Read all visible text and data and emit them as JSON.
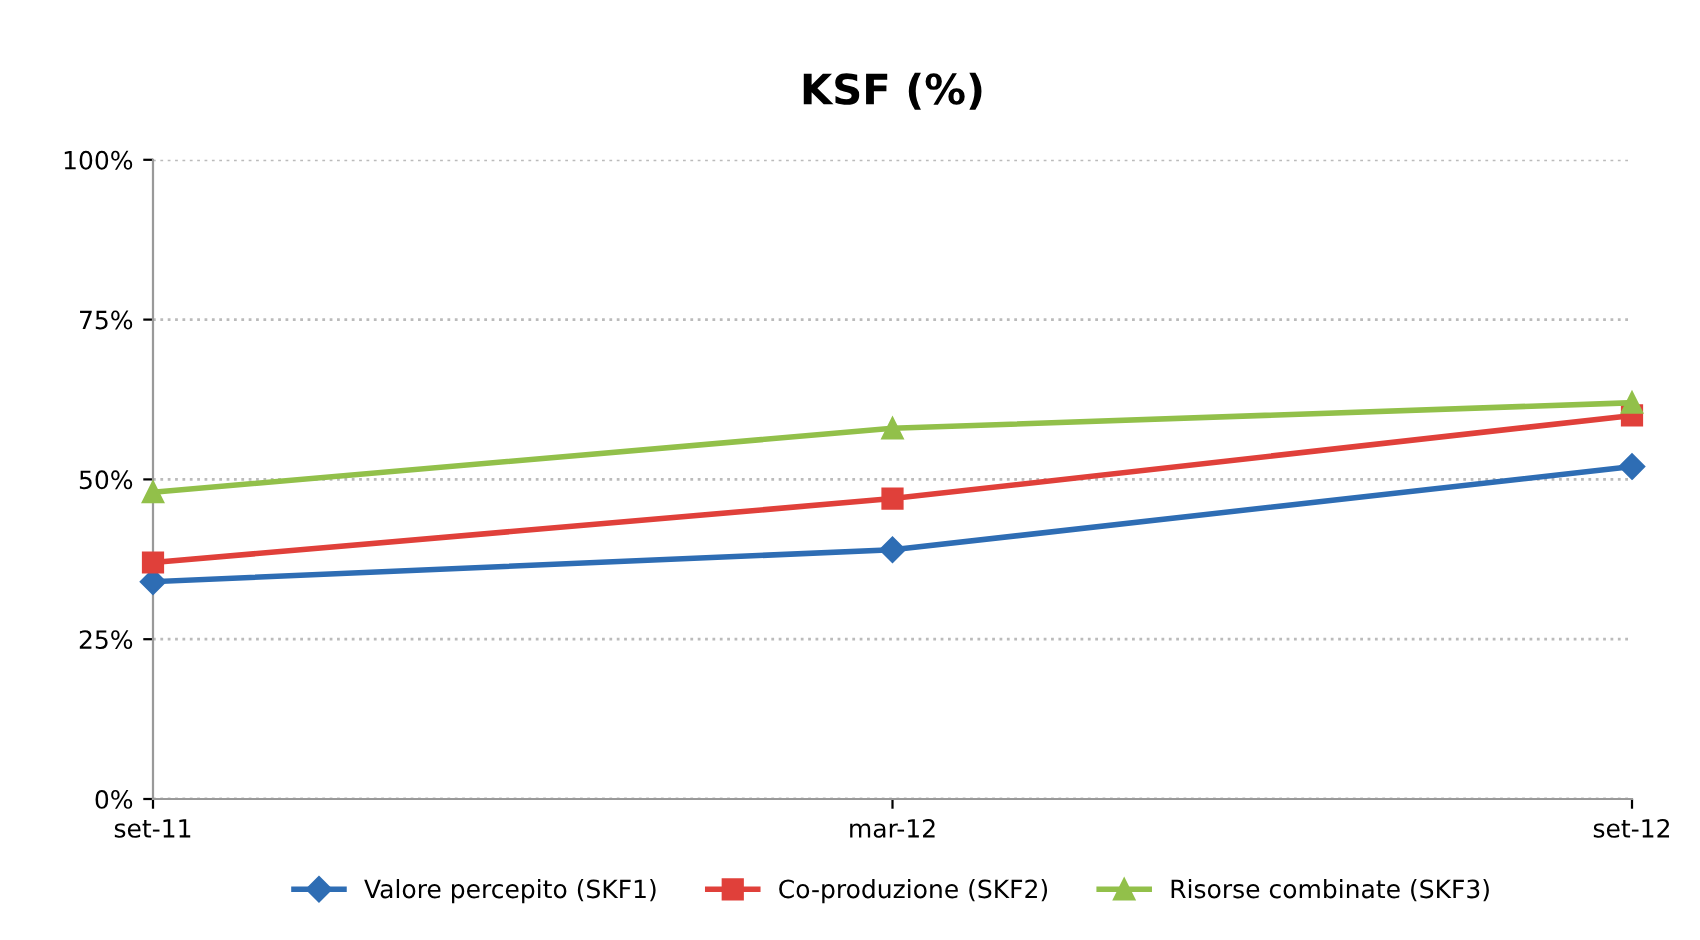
{
  "chart_data": {
    "type": "line",
    "title": "KSF (%)",
    "categories": [
      "set-11",
      "mar-12",
      "set-12"
    ],
    "series": [
      {
        "name": "Valore percepito (SKF1)",
        "color": "#2e6db4",
        "marker": "diamond",
        "values": [
          34,
          39,
          52
        ]
      },
      {
        "name": "Co-produzione (SKF2)",
        "color": "#e0403a",
        "marker": "square",
        "values": [
          37,
          47,
          60
        ]
      },
      {
        "name": "Risorse combinate (SKF3)",
        "color": "#92c04a",
        "marker": "triangle",
        "values": [
          48,
          58,
          62
        ]
      }
    ],
    "ylim": [
      0,
      100
    ],
    "yticks": [
      {
        "value": 0,
        "label": "0%"
      },
      {
        "value": 25,
        "label": "25%"
      },
      {
        "value": 50,
        "label": "50%"
      },
      {
        "value": 75,
        "label": "75%"
      },
      {
        "value": 100,
        "label": "100%"
      }
    ],
    "grid": "y",
    "legend": "bottom",
    "line_style": "solid"
  }
}
